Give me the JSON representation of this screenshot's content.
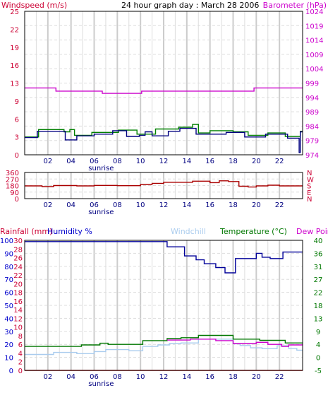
{
  "header": {
    "title": "24 hour graph day : March 28 2006",
    "left_label": "Windspeed (m/s)",
    "right_label": "Barometer (hPa)"
  },
  "colors": {
    "windspeed": "#000080",
    "wind_gust": "#008000",
    "barometer": "#cc00cc",
    "direction": "#aa0000",
    "humidity": "#000099",
    "windchill": "#aaccee",
    "temperature": "#007700",
    "dewpoint": "#cc00cc",
    "rainfall": "#cc0000",
    "label_red": "#cc0033",
    "label_blue": "#0000cc",
    "label_green": "#007700",
    "label_light": "#aaccee",
    "label_magenta": "#cc00cc",
    "grid_major": "#cccccc",
    "grid_minor": "#dddddd"
  },
  "x_ticks": [
    "02",
    "04",
    "06",
    "08",
    "10",
    "12",
    "14",
    "16",
    "18",
    "20",
    "22"
  ],
  "sunrise_label": "sunrise",
  "sunrise_hour": 6.6,
  "chart_data": [
    {
      "type": "line",
      "name": "wind-barometer",
      "ylim_left": [
        0,
        25
      ],
      "yticks_left": [
        "0",
        "3",
        "6",
        "9",
        "13",
        "16",
        "19",
        "22",
        "25"
      ],
      "ylim_right": [
        974,
        1024
      ],
      "yticks_right": [
        "974",
        "979",
        "984",
        "989",
        "994",
        "999",
        "1004",
        "1009",
        "1014",
        "1019",
        "1024"
      ],
      "series": [
        {
          "name": "Barometer (hPa)",
          "axis": "right",
          "color_key": "barometer",
          "points": [
            [
              0,
              997.3
            ],
            [
              2.7,
              997.3
            ],
            [
              2.7,
              996.2
            ],
            [
              6.7,
              996.2
            ],
            [
              6.7,
              995.4
            ],
            [
              10.1,
              995.4
            ],
            [
              10.1,
              996.2
            ],
            [
              19.8,
              996.2
            ],
            [
              19.8,
              997.3
            ],
            [
              24,
              997.3
            ]
          ]
        },
        {
          "name": "wind-gust",
          "axis": "left",
          "color_key": "wind_gust",
          "points": [
            [
              0,
              3.1
            ],
            [
              1.2,
              3.1
            ],
            [
              1.2,
              4.4
            ],
            [
              3.4,
              4.4
            ],
            [
              3.4,
              4.0
            ],
            [
              3.9,
              4.0
            ],
            [
              3.9,
              4.4
            ],
            [
              4.3,
              4.4
            ],
            [
              4.3,
              3.4
            ],
            [
              5.8,
              3.4
            ],
            [
              5.8,
              3.9
            ],
            [
              8.1,
              3.9
            ],
            [
              8.1,
              4.3
            ],
            [
              9.7,
              4.3
            ],
            [
              9.7,
              3.6
            ],
            [
              11.3,
              3.6
            ],
            [
              11.3,
              4.5
            ],
            [
              13.3,
              4.5
            ],
            [
              13.3,
              4.8
            ],
            [
              14.5,
              4.8
            ],
            [
              14.5,
              5.3
            ],
            [
              15.0,
              5.3
            ],
            [
              15.0,
              3.8
            ],
            [
              16.0,
              3.8
            ],
            [
              16.0,
              4.2
            ],
            [
              18.0,
              4.2
            ],
            [
              18.0,
              4.0
            ],
            [
              19.3,
              4.0
            ],
            [
              19.3,
              3.4
            ],
            [
              21.0,
              3.4
            ],
            [
              21.0,
              3.8
            ],
            [
              22.5,
              3.8
            ],
            [
              22.5,
              3.2
            ],
            [
              23.8,
              3.2
            ],
            [
              23.8,
              4.1
            ],
            [
              24,
              4.1
            ]
          ]
        },
        {
          "name": "wind-speed",
          "axis": "left",
          "color_key": "windspeed",
          "points": [
            [
              0,
              3.0
            ],
            [
              1.1,
              3.0
            ],
            [
              1.1,
              4.1
            ],
            [
              3.5,
              4.1
            ],
            [
              3.5,
              2.6
            ],
            [
              4.5,
              2.6
            ],
            [
              4.5,
              3.3
            ],
            [
              6.0,
              3.3
            ],
            [
              6.0,
              3.6
            ],
            [
              7.6,
              3.6
            ],
            [
              7.6,
              4.2
            ],
            [
              8.8,
              4.2
            ],
            [
              8.8,
              3.2
            ],
            [
              9.9,
              3.2
            ],
            [
              9.9,
              3.4
            ],
            [
              10.4,
              3.4
            ],
            [
              10.4,
              4.0
            ],
            [
              11.0,
              4.0
            ],
            [
              11.0,
              3.3
            ],
            [
              12.4,
              3.3
            ],
            [
              12.4,
              4.1
            ],
            [
              13.4,
              4.1
            ],
            [
              13.4,
              4.6
            ],
            [
              14.8,
              4.6
            ],
            [
              14.8,
              3.6
            ],
            [
              17.4,
              3.6
            ],
            [
              17.4,
              3.9
            ],
            [
              19.0,
              3.9
            ],
            [
              19.0,
              3.1
            ],
            [
              20.8,
              3.1
            ],
            [
              20.8,
              3.6
            ],
            [
              22.7,
              3.6
            ],
            [
              22.7,
              2.9
            ],
            [
              23.7,
              2.9
            ],
            [
              23.7,
              0.4
            ],
            [
              23.8,
              0.4
            ],
            [
              23.8,
              4.0
            ],
            [
              24,
              4.0
            ]
          ]
        }
      ]
    },
    {
      "type": "line",
      "name": "wind-direction",
      "ylim": [
        0,
        360
      ],
      "yticks_left": [
        "0",
        "90",
        "180",
        "270",
        "360"
      ],
      "yticks_right": [
        "N",
        "E",
        "S",
        "W",
        "N"
      ],
      "series": [
        {
          "name": "wind-direction",
          "color_key": "direction",
          "points": [
            [
              0,
              175
            ],
            [
              1.5,
              175
            ],
            [
              1.5,
              165
            ],
            [
              2.5,
              165
            ],
            [
              2.5,
              180
            ],
            [
              4.5,
              180
            ],
            [
              4.5,
              175
            ],
            [
              6.0,
              175
            ],
            [
              6.0,
              182
            ],
            [
              8.0,
              182
            ],
            [
              8.0,
              178
            ],
            [
              10.0,
              178
            ],
            [
              10.0,
              195
            ],
            [
              11.0,
              195
            ],
            [
              11.0,
              210
            ],
            [
              12.0,
              210
            ],
            [
              12.0,
              225
            ],
            [
              14.5,
              225
            ],
            [
              14.5,
              240
            ],
            [
              16.0,
              240
            ],
            [
              16.0,
              220
            ],
            [
              16.8,
              220
            ],
            [
              16.8,
              245
            ],
            [
              17.6,
              245
            ],
            [
              17.6,
              235
            ],
            [
              18.5,
              235
            ],
            [
              18.5,
              170
            ],
            [
              19.3,
              170
            ],
            [
              19.3,
              160
            ],
            [
              20.0,
              160
            ],
            [
              20.0,
              175
            ],
            [
              21.0,
              175
            ],
            [
              21.0,
              185
            ],
            [
              22.0,
              185
            ],
            [
              22.0,
              175
            ],
            [
              24,
              175
            ]
          ]
        }
      ]
    },
    {
      "type": "line",
      "name": "temp-humidity-rain",
      "header_labels": {
        "rainfall": "Rainfall (mm)",
        "humidity": "Humidity %",
        "windchill": "Windchill",
        "temperature": "Temperature (°C)",
        "dewpoint": "Dew Point"
      },
      "yticks_rain": [
        "0",
        "2",
        "4",
        "6",
        "8",
        "10",
        "12",
        "14",
        "16",
        "18",
        "20",
        "22",
        "24",
        "26",
        "28",
        "30"
      ],
      "yticks_humidity": [
        "0",
        "10",
        "20",
        "30",
        "40",
        "50",
        "60",
        "70",
        "80",
        "90",
        "100"
      ],
      "ylim_right": [
        -5,
        40
      ],
      "yticks_right": [
        "-5",
        "0",
        "4",
        "9",
        "13",
        "18",
        "22",
        "27",
        "31",
        "36",
        "40"
      ],
      "humidity_ylim": [
        0,
        100
      ],
      "series": [
        {
          "name": "Humidity %",
          "axis": "humidity",
          "color_key": "humidity",
          "points": [
            [
              0,
              99
            ],
            [
              12.3,
              99
            ],
            [
              12.3,
              95
            ],
            [
              13.8,
              95
            ],
            [
              13.8,
              88
            ],
            [
              14.8,
              88
            ],
            [
              14.8,
              85
            ],
            [
              15.5,
              85
            ],
            [
              15.5,
              82
            ],
            [
              16.5,
              82
            ],
            [
              16.5,
              79
            ],
            [
              17.3,
              79
            ],
            [
              17.3,
              75
            ],
            [
              18.2,
              75
            ],
            [
              18.2,
              86
            ],
            [
              20.0,
              86
            ],
            [
              20.0,
              90
            ],
            [
              20.5,
              90
            ],
            [
              20.5,
              87
            ],
            [
              21.2,
              87
            ],
            [
              21.2,
              86
            ],
            [
              22.3,
              86
            ],
            [
              22.3,
              91
            ],
            [
              24,
              91
            ]
          ]
        },
        {
          "name": "Windchill",
          "axis": "right",
          "color_key": "windchill",
          "points": [
            [
              0,
              0.5
            ],
            [
              2.5,
              0.5
            ],
            [
              2.5,
              1.2
            ],
            [
              4.5,
              1.2
            ],
            [
              4.5,
              0.8
            ],
            [
              6.0,
              0.8
            ],
            [
              6.0,
              1.5
            ],
            [
              7.0,
              1.5
            ],
            [
              7.0,
              2.2
            ],
            [
              9.0,
              2.2
            ],
            [
              9.0,
              1.8
            ],
            [
              10.2,
              1.8
            ],
            [
              10.2,
              3.3
            ],
            [
              11.5,
              3.3
            ],
            [
              11.5,
              3.8
            ],
            [
              12.5,
              3.8
            ],
            [
              12.5,
              4.3
            ],
            [
              13.5,
              4.3
            ],
            [
              13.5,
              4.5
            ],
            [
              15.0,
              4.5
            ],
            [
              15.0,
              5.8
            ],
            [
              18.0,
              5.8
            ],
            [
              18.0,
              4.2
            ],
            [
              18.6,
              4.2
            ],
            [
              18.6,
              3.6
            ],
            [
              19.5,
              3.6
            ],
            [
              19.5,
              2.8
            ],
            [
              20.5,
              2.8
            ],
            [
              20.5,
              2.5
            ],
            [
              21.8,
              2.5
            ],
            [
              21.8,
              3.5
            ],
            [
              22.8,
              3.5
            ],
            [
              22.8,
              2.6
            ],
            [
              23.5,
              2.6
            ],
            [
              23.5,
              2.0
            ],
            [
              24,
              2.0
            ]
          ]
        },
        {
          "name": "Temperature (°C)",
          "axis": "right",
          "color_key": "temperature",
          "points": [
            [
              0,
              3.3
            ],
            [
              4.9,
              3.3
            ],
            [
              4.9,
              3.8
            ],
            [
              6.5,
              3.8
            ],
            [
              6.5,
              4.4
            ],
            [
              7.2,
              4.4
            ],
            [
              7.2,
              4.0
            ],
            [
              10.2,
              4.0
            ],
            [
              10.2,
              5.3
            ],
            [
              12.3,
              5.3
            ],
            [
              12.3,
              6.0
            ],
            [
              13.5,
              6.0
            ],
            [
              13.5,
              6.3
            ],
            [
              15.0,
              6.3
            ],
            [
              15.0,
              7.1
            ],
            [
              18.0,
              7.1
            ],
            [
              18.0,
              5.8
            ],
            [
              20.3,
              5.8
            ],
            [
              20.3,
              5.4
            ],
            [
              22.5,
              5.4
            ],
            [
              22.5,
              4.5
            ],
            [
              24,
              4.5
            ]
          ]
        },
        {
          "name": "Dew Point",
          "axis": "right",
          "color_key": "dewpoint",
          "points": [
            [
              12.3,
              5.5
            ],
            [
              14.3,
              5.5
            ],
            [
              14.3,
              5.8
            ],
            [
              16.5,
              5.8
            ],
            [
              16.5,
              5.3
            ],
            [
              18.0,
              5.3
            ],
            [
              18.0,
              4.3
            ],
            [
              20.0,
              4.3
            ],
            [
              20.0,
              4.7
            ],
            [
              21.0,
              4.7
            ],
            [
              21.0,
              4.0
            ],
            [
              22.2,
              4.0
            ],
            [
              22.2,
              3.3
            ],
            [
              22.8,
              3.3
            ],
            [
              22.8,
              3.8
            ],
            [
              24,
              3.8
            ]
          ]
        },
        {
          "name": "Rainfall (mm)",
          "axis": "rain",
          "color_key": "rainfall",
          "points": [
            [
              0,
              0
            ],
            [
              24,
              0
            ]
          ]
        }
      ]
    }
  ]
}
